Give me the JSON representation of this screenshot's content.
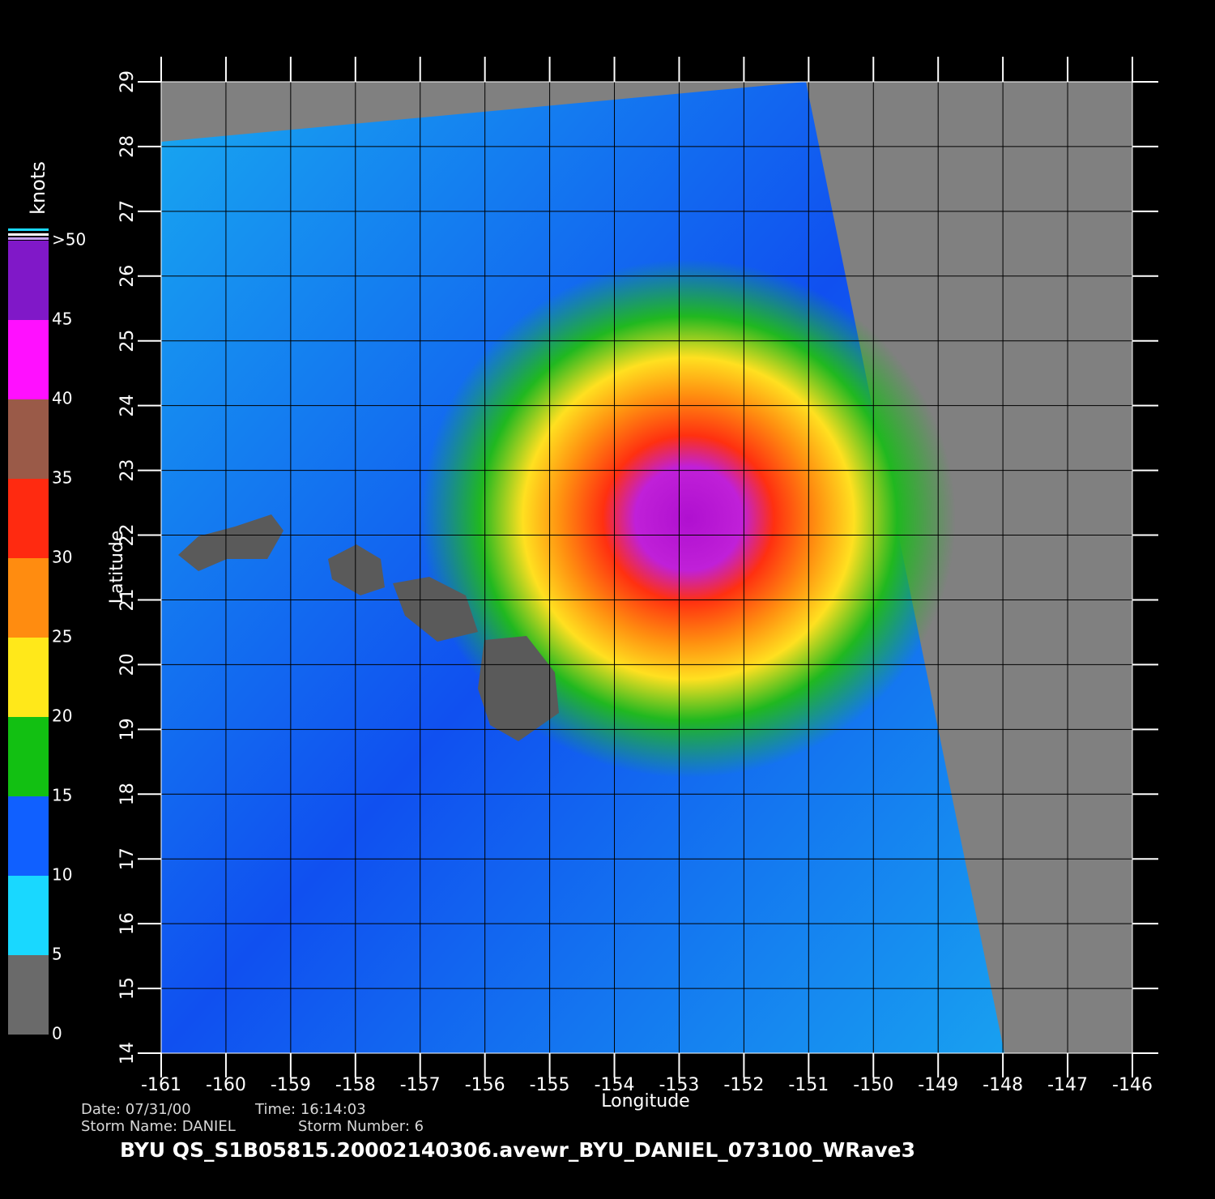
{
  "map": {
    "xlabel": "Longitude",
    "ylabel": "Latitude",
    "xlim": [
      -161,
      -146
    ],
    "ylim": [
      14,
      29
    ],
    "xticks": [
      -161,
      -160,
      -159,
      -158,
      -157,
      -156,
      -155,
      -154,
      -153,
      -152,
      -151,
      -150,
      -149,
      -148,
      -147,
      -146
    ],
    "yticks": [
      14,
      15,
      16,
      17,
      18,
      19,
      20,
      21,
      22,
      23,
      24,
      25,
      26,
      27,
      28,
      29
    ]
  },
  "colorbar": {
    "title": "knots",
    "ticks": [
      0,
      5,
      10,
      15,
      20,
      25,
      30,
      35,
      40,
      45,
      {
        "value": 50,
        "label": ">50"
      }
    ],
    "colors": [
      "#6a6a6a",
      "#19d8ff",
      "#1060ff",
      "#12c012",
      "#ffe81a",
      "#ff8c10",
      "#ff2a10",
      "#9a5a48",
      "#ff10ff",
      "#8018c8"
    ]
  },
  "info": {
    "date": "Date: 07/31/00",
    "time": "Time: 16:14:03",
    "storm_name": "Storm Name: DANIEL",
    "storm_number": "Storm Number: 6",
    "file": "BYU  QS_S1B05815.20002140306.avewr_BYU_DANIEL_073100_WRave3"
  }
}
